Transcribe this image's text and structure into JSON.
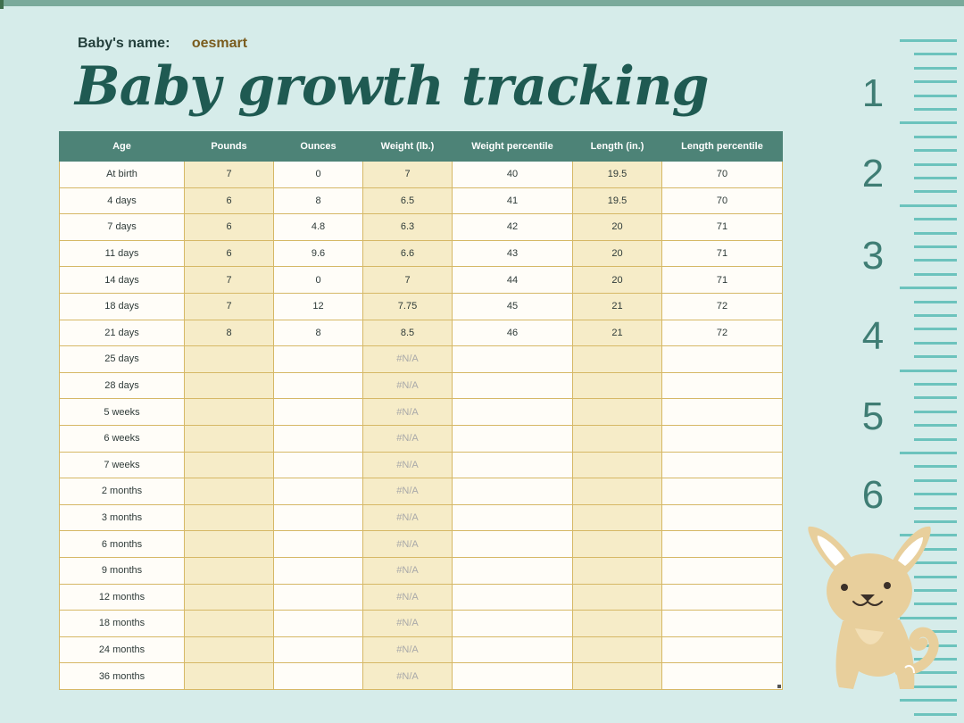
{
  "baby_name_label": "Baby's name:",
  "baby_name": "oesmart",
  "title": "Baby growth tracking",
  "columns": [
    "Age",
    "Pounds",
    "Ounces",
    "Weight (lb.)",
    "Weight percentile",
    "Length (in.)",
    "Length percentile"
  ],
  "rows": [
    [
      "At birth",
      "7",
      "0",
      "7",
      "40",
      "19.5",
      "70"
    ],
    [
      "4 days",
      "6",
      "8",
      "6.5",
      "41",
      "19.5",
      "70"
    ],
    [
      "7 days",
      "6",
      "4.8",
      "6.3",
      "42",
      "20",
      "71"
    ],
    [
      "11 days",
      "6",
      "9.6",
      "6.6",
      "43",
      "20",
      "71"
    ],
    [
      "14 days",
      "7",
      "0",
      "7",
      "44",
      "20",
      "71"
    ],
    [
      "18 days",
      "7",
      "12",
      "7.75",
      "45",
      "21",
      "72"
    ],
    [
      "21 days",
      "8",
      "8",
      "8.5",
      "46",
      "21",
      "72"
    ],
    [
      "25 days",
      "",
      "",
      "#N/A",
      "",
      "",
      ""
    ],
    [
      "28 days",
      "",
      "",
      "#N/A",
      "",
      "",
      ""
    ],
    [
      "5 weeks",
      "",
      "",
      "#N/A",
      "",
      "",
      ""
    ],
    [
      "6 weeks",
      "",
      "",
      "#N/A",
      "",
      "",
      ""
    ],
    [
      "7 weeks",
      "",
      "",
      "#N/A",
      "",
      "",
      ""
    ],
    [
      "2 months",
      "",
      "",
      "#N/A",
      "",
      "",
      ""
    ],
    [
      "3 months",
      "",
      "",
      "#N/A",
      "",
      "",
      ""
    ],
    [
      "6 months",
      "",
      "",
      "#N/A",
      "",
      "",
      ""
    ],
    [
      "9 months",
      "",
      "",
      "#N/A",
      "",
      "",
      ""
    ],
    [
      "12 months",
      "",
      "",
      "#N/A",
      "",
      "",
      ""
    ],
    [
      "18 months",
      "",
      "",
      "#N/A",
      "",
      "",
      ""
    ],
    [
      "24 months",
      "",
      "",
      "#N/A",
      "",
      "",
      ""
    ],
    [
      "36 months",
      "",
      "",
      "#N/A",
      "",
      "",
      ""
    ]
  ],
  "ruler_numbers": [
    "1",
    "2",
    "3",
    "4",
    "5",
    "6"
  ],
  "decoration": "chihuahua-illustration",
  "colors": {
    "background": "#d6ecea",
    "header": "#4d8377",
    "title": "#1f5a52",
    "shaded_column": "#f6ecc8",
    "grid_line": "#d6b866",
    "ruler": "#6cc3bd"
  }
}
